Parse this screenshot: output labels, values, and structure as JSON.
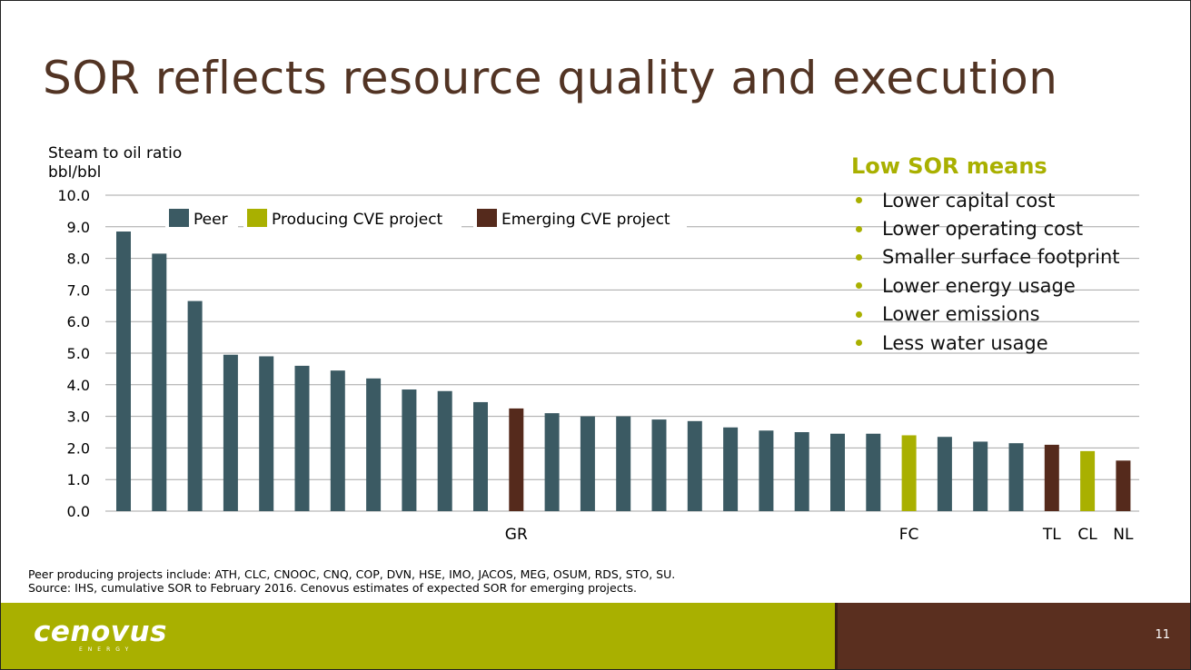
{
  "slide": {
    "title": "SOR reflects resource quality and execution",
    "page_number": "11",
    "footnote_line1": "Peer producing projects include: ATH, CLC, CNOOC, CNQ, COP, DVN, HSE, IMO, JACOS, MEG, OSUM, RDS, STO, SU.",
    "footnote_line2": "Source: IHS, cumulative SOR to February 2016. Cenovus estimates of expected SOR for emerging projects.",
    "logo_text": "cenovus",
    "logo_subtext": "ENERGY"
  },
  "sidebar": {
    "title": "Low SOR means",
    "items": [
      "Lower capital cost",
      "Lower operating cost",
      "Smaller surface footprint",
      "Lower energy usage",
      "Lower emissions",
      "Less water usage"
    ]
  },
  "colors": {
    "title": "#523424",
    "peer": "#3b5a63",
    "producing": "#a9b000",
    "emerging": "#552a1c",
    "footer_green": "#a9b000",
    "footer_brown": "#5a2f1f"
  },
  "chart_data": {
    "type": "bar",
    "ylabel_line1": "Steam to oil ratio",
    "ylabel_line2": "bbl/bbl",
    "ylim": [
      0,
      10
    ],
    "yticks": [
      "10.0",
      "9.0",
      "8.0",
      "7.0",
      "6.0",
      "5.0",
      "4.0",
      "3.0",
      "2.0",
      "1.0",
      "0.0"
    ],
    "grid": true,
    "legend": [
      {
        "label": "Peer",
        "group": "peer"
      },
      {
        "label": "Producing CVE project",
        "group": "producing"
      },
      {
        "label": "Emerging CVE project",
        "group": "emerging"
      }
    ],
    "bars": [
      {
        "label": "",
        "value": 8.85,
        "group": "peer"
      },
      {
        "label": "",
        "value": 8.15,
        "group": "peer"
      },
      {
        "label": "",
        "value": 6.65,
        "group": "peer"
      },
      {
        "label": "",
        "value": 4.95,
        "group": "peer"
      },
      {
        "label": "",
        "value": 4.9,
        "group": "peer"
      },
      {
        "label": "",
        "value": 4.6,
        "group": "peer"
      },
      {
        "label": "",
        "value": 4.45,
        "group": "peer"
      },
      {
        "label": "",
        "value": 4.2,
        "group": "peer"
      },
      {
        "label": "",
        "value": 3.85,
        "group": "peer"
      },
      {
        "label": "",
        "value": 3.8,
        "group": "peer"
      },
      {
        "label": "",
        "value": 3.45,
        "group": "peer"
      },
      {
        "label": "GR",
        "value": 3.25,
        "group": "emerging"
      },
      {
        "label": "",
        "value": 3.1,
        "group": "peer"
      },
      {
        "label": "",
        "value": 3.0,
        "group": "peer"
      },
      {
        "label": "",
        "value": 3.0,
        "group": "peer"
      },
      {
        "label": "",
        "value": 2.9,
        "group": "peer"
      },
      {
        "label": "",
        "value": 2.85,
        "group": "peer"
      },
      {
        "label": "",
        "value": 2.65,
        "group": "peer"
      },
      {
        "label": "",
        "value": 2.55,
        "group": "peer"
      },
      {
        "label": "",
        "value": 2.5,
        "group": "peer"
      },
      {
        "label": "",
        "value": 2.45,
        "group": "peer"
      },
      {
        "label": "",
        "value": 2.45,
        "group": "peer"
      },
      {
        "label": "FC",
        "value": 2.4,
        "group": "producing"
      },
      {
        "label": "",
        "value": 2.35,
        "group": "peer"
      },
      {
        "label": "",
        "value": 2.2,
        "group": "peer"
      },
      {
        "label": "",
        "value": 2.15,
        "group": "peer"
      },
      {
        "label": "TL",
        "value": 2.1,
        "group": "emerging"
      },
      {
        "label": "CL",
        "value": 1.9,
        "group": "producing"
      },
      {
        "label": "NL",
        "value": 1.6,
        "group": "emerging"
      }
    ]
  }
}
